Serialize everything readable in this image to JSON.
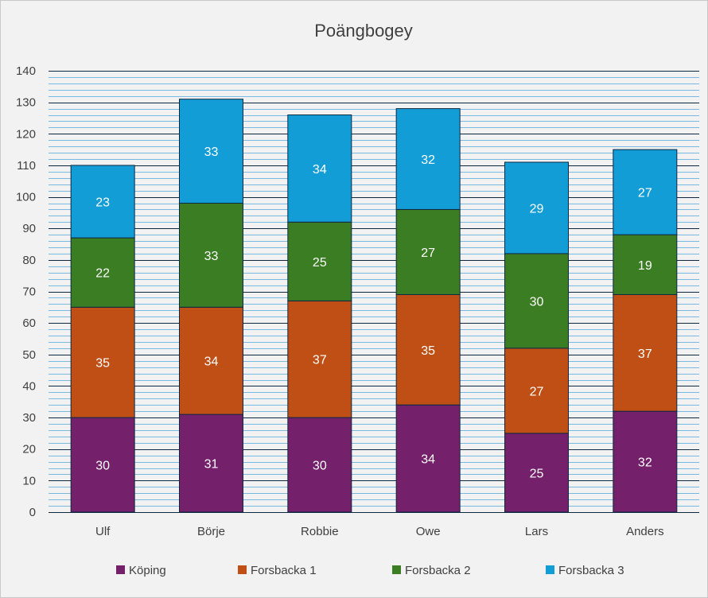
{
  "chart_data": {
    "type": "bar",
    "stacked": true,
    "title": "Poängbogey",
    "xlabel": "",
    "ylabel": "",
    "categories": [
      "Ulf",
      "Börje",
      "Robbie",
      "Owe",
      "Lars",
      "Anders"
    ],
    "series": [
      {
        "name": "Köping",
        "values": [
          30,
          31,
          30,
          34,
          25,
          32
        ],
        "color": "#74206b"
      },
      {
        "name": "Forsbacka 1",
        "values": [
          35,
          34,
          37,
          35,
          27,
          37
        ],
        "color": "#c04f15"
      },
      {
        "name": "Forsbacka 2",
        "values": [
          22,
          33,
          25,
          27,
          30,
          19
        ],
        "color": "#3b7d23"
      },
      {
        "name": "Forsbacka 3",
        "values": [
          23,
          33,
          34,
          32,
          29,
          27
        ],
        "color": "#139dd6"
      }
    ],
    "ylim": [
      0,
      140
    ],
    "yticks": [
      0,
      10,
      20,
      30,
      40,
      50,
      60,
      70,
      80,
      90,
      100,
      110,
      120,
      130,
      140
    ],
    "minor_step": 2,
    "grid": true,
    "legend_position": "bottom",
    "major_grid_color": "#0e2841",
    "minor_grid_color": "#4ea6dc"
  }
}
